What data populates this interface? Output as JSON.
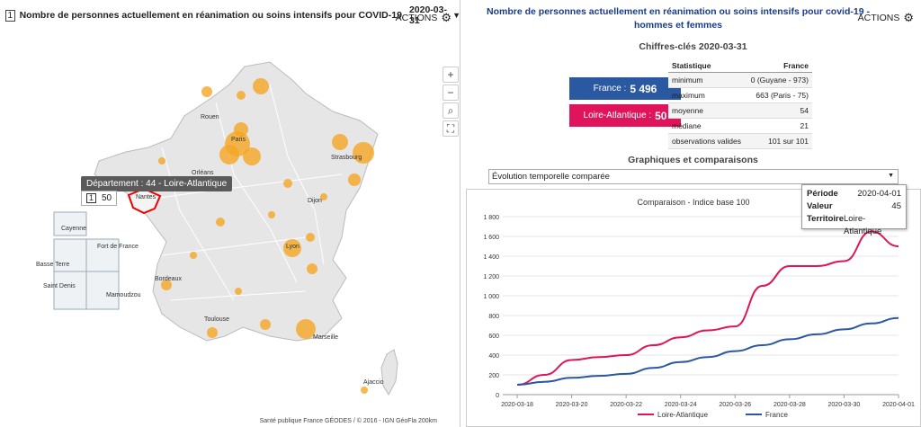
{
  "left": {
    "badge": "1",
    "title": "Nombre de personnes actuellement en réanimation ou soins intensifs pour COVID-19",
    "date": "2020-03-31",
    "actions": "ACTIONS",
    "tooltip_title": "Département : 44 - Loire-Atlantique",
    "tooltip_badge": "1",
    "tooltip_value": "50",
    "footer": "Santé publique France GÉODES / © 2016 - IGN GéoFla  200km",
    "cities": [
      "Rouen",
      "Paris",
      "Strasbourg",
      "Orléans",
      "Nantes",
      "Dijon",
      "Lyon",
      "Bordeaux",
      "Toulouse",
      "Marseille",
      "Ajaccio",
      "Cayenne",
      "Fort de France",
      "Basse Terre",
      "Saint Denis",
      "Mamoudzou"
    ],
    "zoom_in": "+",
    "zoom_out": "−",
    "search_icon": "search-icon",
    "fullscreen_icon": "fullscreen-icon"
  },
  "right": {
    "title": "Nombre de personnes actuellement en réanimation ou soins intensifs pour covid-19 - hommes et femmes",
    "actions": "ACTIONS",
    "key_figures_title": "Chiffres-clés 2020-03-31",
    "kpi_france_label": "France :",
    "kpi_france_value": "5 496",
    "kpi_la_label": "Loire-Atlantique :",
    "kpi_la_value": "50",
    "stats_header": [
      "Statistique",
      "France"
    ],
    "stats_rows": [
      [
        "minimum",
        "0 (Guyane - 973)"
      ],
      [
        "maximum",
        "663 (Paris - 75)"
      ],
      [
        "moyenne",
        "54"
      ],
      [
        "médiane",
        "21"
      ],
      [
        "observations valides",
        "101 sur 101"
      ]
    ],
    "graphs_title": "Graphiques et comparaisons",
    "select_value": "Évolution temporelle comparée",
    "tooltip": {
      "periode_label": "Période",
      "periode_value": "2020-04-01",
      "valeur_label": "Valeur",
      "valeur_value": "45",
      "territoire_label": "Territoire",
      "territoire_value": "Loire-Atlantique"
    }
  },
  "colors": {
    "france": "#2a58a1",
    "loire_atlantique": "#e0145a",
    "bubble": "#f5a623"
  },
  "chart_data": {
    "type": "line",
    "title": "Comparaison - Indice base 100",
    "x": [
      "2020-03-18",
      "2020-03-19",
      "2020-03-20",
      "2020-03-21",
      "2020-03-22",
      "2020-03-23",
      "2020-03-24",
      "2020-03-25",
      "2020-03-26",
      "2020-03-27",
      "2020-03-28",
      "2020-03-29",
      "2020-03-30",
      "2020-03-31",
      "2020-04-01"
    ],
    "x_ticks": [
      "2020-03-18",
      "2020-03-20",
      "2020-03-22",
      "2020-03-24",
      "2020-03-26",
      "2020-03-28",
      "2020-03-30",
      "2020-04-01"
    ],
    "y_ticks": [
      "0",
      "200",
      "400",
      "600",
      "800",
      "1 000",
      "1 200",
      "1 400",
      "1 600",
      "1 800"
    ],
    "ylim": [
      0,
      1800
    ],
    "series": [
      {
        "name": "Loire-Atlantique",
        "values": [
          100,
          200,
          350,
          380,
          400,
          500,
          580,
          650,
          690,
          1100,
          1300,
          1300,
          1350,
          1650,
          1500
        ]
      },
      {
        "name": "France",
        "values": [
          100,
          130,
          170,
          190,
          210,
          270,
          330,
          380,
          440,
          500,
          560,
          610,
          660,
          720,
          775
        ]
      }
    ],
    "legend": "bottom"
  }
}
